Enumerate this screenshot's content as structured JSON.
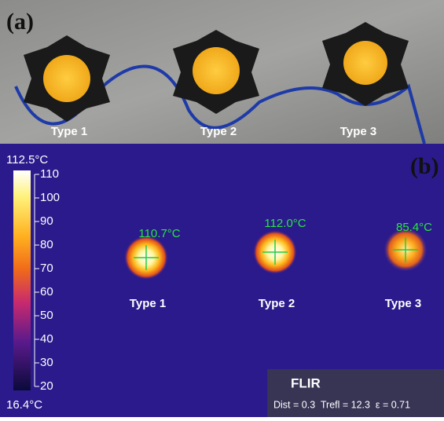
{
  "panel_a": {
    "label": "(a)",
    "types": [
      "Type 1",
      "Type 2",
      "Type 3"
    ]
  },
  "panel_b": {
    "label": "(b)",
    "colorbar": {
      "max": "112.5°C",
      "min": "16.4°C",
      "ticks": [
        110,
        100,
        90,
        80,
        70,
        60,
        50,
        40,
        30,
        20
      ]
    },
    "spots": [
      {
        "temp": "110.7°C",
        "type": "Type 1"
      },
      {
        "temp": "112.0°C",
        "type": "Type 2"
      },
      {
        "temp": "85.4°C",
        "type": "Type 3"
      }
    ],
    "logo": "FLIR",
    "info": "Dist = 0.3  Trefl = 12.3  ε = 0.71"
  }
}
